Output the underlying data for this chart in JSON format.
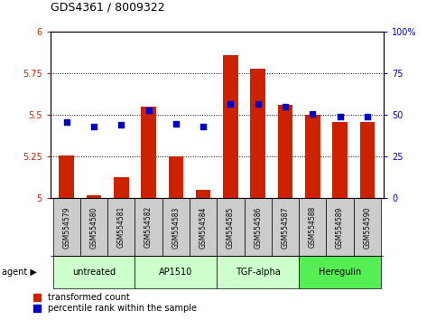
{
  "title": "GDS4361 / 8009322",
  "samples": [
    "GSM554579",
    "GSM554580",
    "GSM554581",
    "GSM554582",
    "GSM554583",
    "GSM554584",
    "GSM554585",
    "GSM554586",
    "GSM554587",
    "GSM554588",
    "GSM554589",
    "GSM554590"
  ],
  "red_values": [
    5.26,
    5.02,
    5.13,
    5.55,
    5.25,
    5.05,
    5.86,
    5.78,
    5.56,
    5.5,
    5.46,
    5.46
  ],
  "blue_values": [
    46,
    43,
    44,
    53,
    45,
    43,
    57,
    57,
    55,
    51,
    49,
    49
  ],
  "groups": [
    {
      "label": "untreated",
      "start": 0,
      "end": 3
    },
    {
      "label": "AP1510",
      "start": 3,
      "end": 6
    },
    {
      "label": "TGF-alpha",
      "start": 6,
      "end": 9
    },
    {
      "label": "Heregulin",
      "start": 9,
      "end": 12
    }
  ],
  "group_colors": [
    "#ccffcc",
    "#ccffcc",
    "#ccffcc",
    "#55ee55"
  ],
  "ylim_left": [
    5.0,
    6.0
  ],
  "ylim_right": [
    0,
    100
  ],
  "yticks_left": [
    5.0,
    5.25,
    5.5,
    5.75,
    6.0
  ],
  "yticks_right": [
    0,
    25,
    50,
    75,
    100
  ],
  "ytick_labels_left": [
    "5",
    "5.25",
    "5.5",
    "5.75",
    "6"
  ],
  "ytick_labels_right": [
    "0",
    "25",
    "50",
    "75",
    "100%"
  ],
  "red_color": "#cc2200",
  "blue_color": "#0000cc",
  "bar_width": 0.55,
  "bg_color": "#ffffff",
  "legend_red": "transformed count",
  "legend_blue": "percentile rank within the sample",
  "sample_box_color": "#cccccc",
  "title_fontsize": 9,
  "tick_fontsize": 7,
  "sample_fontsize": 5.5,
  "group_fontsize": 7,
  "legend_fontsize": 7
}
